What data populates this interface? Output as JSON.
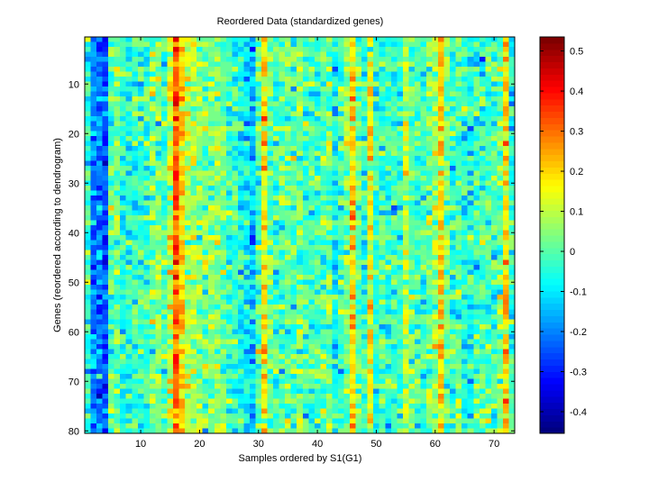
{
  "chart_data": {
    "type": "heatmap",
    "title": "Reordered Data (standardized genes)",
    "xlabel": "Samples ordered by S1(G1)",
    "ylabel": "Genes (reordered according to dendrogram)",
    "n_cols": 73,
    "n_rows": 80,
    "xlim": [
      0.5,
      73.5
    ],
    "ylim": [
      0.5,
      80.5
    ],
    "xticks": [
      10,
      20,
      30,
      40,
      50,
      60,
      70
    ],
    "yticks": [
      10,
      20,
      30,
      40,
      50,
      60,
      70,
      80
    ],
    "colormap": "jet",
    "clim": [
      -0.454,
      0.535
    ],
    "colorbar_ticks": [
      0.5,
      0.4,
      0.3,
      0.2,
      0.1,
      0,
      -0.1,
      -0.2,
      -0.3,
      -0.4
    ],
    "colorbar_tick_labels": [
      "0.5",
      "0.4",
      "0.3",
      "0.2",
      "0.1",
      "0",
      "-0.1",
      "-0.2",
      "-0.3",
      "-0.4"
    ],
    "column_means": [
      -0.05,
      -0.2,
      -0.2,
      -0.26,
      0.0,
      0.02,
      -0.05,
      -0.05,
      -0.03,
      -0.05,
      -0.03,
      0.04,
      0.05,
      -0.02,
      0.1,
      0.33,
      0.2,
      0.1,
      0.08,
      0.05,
      0.03,
      0.05,
      0.06,
      0.03,
      -0.03,
      -0.05,
      -0.06,
      -0.08,
      -0.14,
      0.0,
      0.16,
      0.02,
      -0.02,
      0.0,
      0.02,
      0.0,
      0.03,
      -0.02,
      0.0,
      -0.02,
      0.0,
      0.03,
      -0.09,
      -0.02,
      0.05,
      0.19,
      0.03,
      -0.03,
      0.16,
      -0.03,
      0.0,
      -0.03,
      -0.03,
      -0.02,
      0.1,
      0.0,
      -0.01,
      -0.02,
      0.02,
      0.06,
      0.21,
      0.02,
      -0.03,
      0.0,
      -0.04,
      -0.05,
      -0.02,
      -0.02,
      0.0,
      -0.02,
      0.03,
      0.2,
      -0.04
    ],
    "noise_sd": 0.07,
    "noise_seed": 12345
  }
}
